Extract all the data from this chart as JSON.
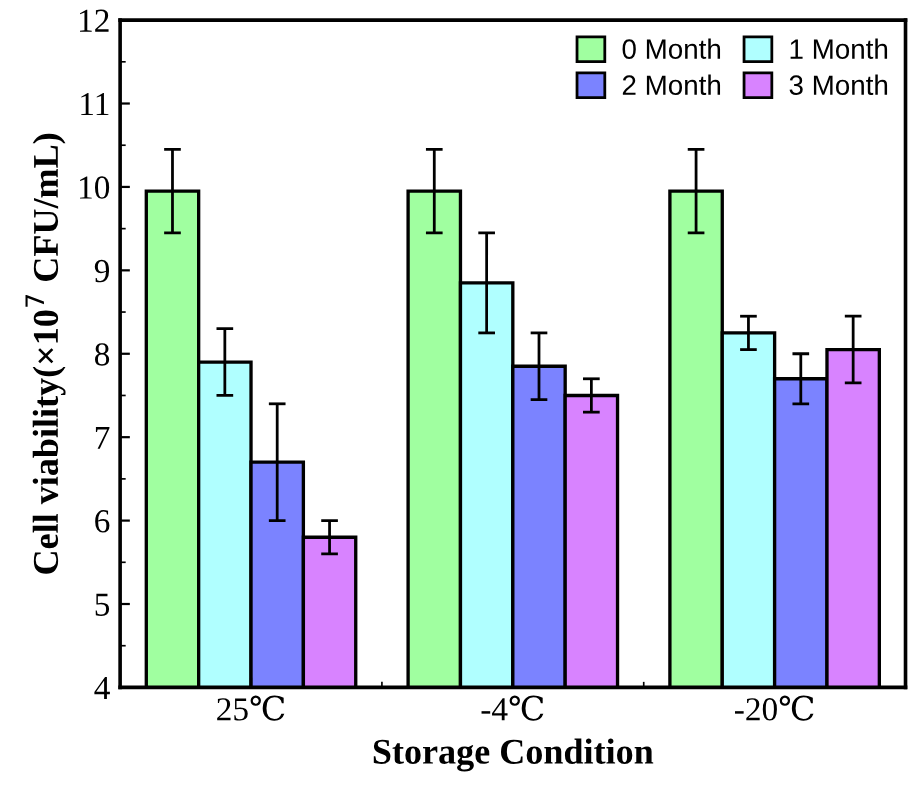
{
  "chart_data": {
    "type": "bar",
    "xlabel": "Storage Condition",
    "ylabel": "Cell viability(×10$^{7}$ CFU/mL)",
    "categories": [
      "25℃",
      "-4℃",
      "-20℃"
    ],
    "series": [
      {
        "name": "0 Month",
        "color": "#a0ffa0",
        "values": [
          9.95,
          9.95,
          9.95
        ],
        "errors": [
          0.5,
          0.5,
          0.5
        ]
      },
      {
        "name": "1 Month",
        "color": "#b0ffff",
        "values": [
          7.9,
          8.85,
          8.25
        ],
        "errors": [
          0.4,
          0.6,
          0.2
        ]
      },
      {
        "name": "2 Month",
        "color": "#7b83ff",
        "values": [
          6.7,
          7.85,
          7.7
        ],
        "errors": [
          0.7,
          0.4,
          0.3
        ]
      },
      {
        "name": "3 Month",
        "color": "#d883ff",
        "values": [
          5.8,
          7.5,
          8.05
        ],
        "errors": [
          0.2,
          0.2,
          0.4
        ]
      }
    ],
    "ylim": [
      4,
      12
    ],
    "yticks": [
      4,
      5,
      6,
      7,
      8,
      9,
      10,
      11,
      12
    ],
    "legend": "top right",
    "grid": false
  }
}
